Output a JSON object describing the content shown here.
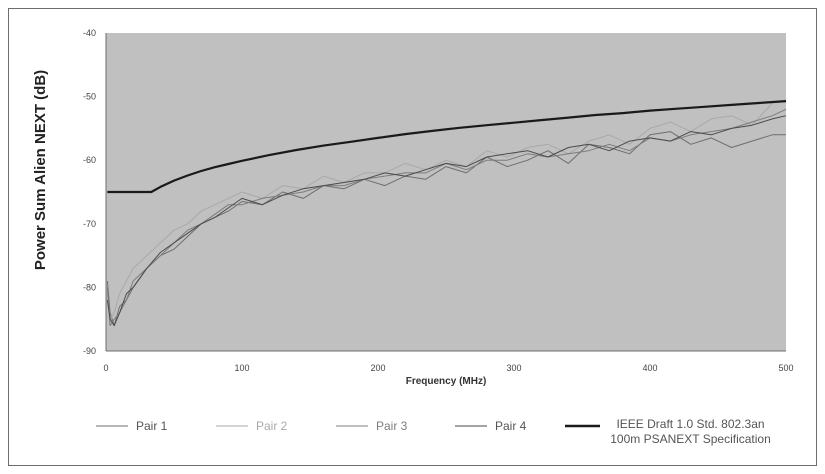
{
  "chart_data": {
    "type": "line",
    "xlabel": "Frequency (MHz)",
    "ylabel": "Power Sum Alien NEXT (dB)",
    "xlim": [
      0,
      500
    ],
    "ylim": [
      -90,
      -40
    ],
    "xticks": [
      0,
      100,
      200,
      300,
      400,
      500
    ],
    "yticks": [
      -40,
      -50,
      -60,
      -70,
      -80,
      -90
    ],
    "grid": false,
    "legend_position": "bottom",
    "plot_background": "#c0c0c0",
    "series": [
      {
        "name": "Pair 1",
        "color": "#6e6e6e",
        "x": [
          1,
          3,
          6,
          10,
          15,
          20,
          30,
          40,
          50,
          60,
          70,
          80,
          90,
          100,
          115,
          130,
          145,
          160,
          175,
          190,
          205,
          220,
          235,
          250,
          265,
          280,
          295,
          310,
          325,
          340,
          355,
          370,
          385,
          400,
          415,
          430,
          445,
          460,
          475,
          490,
          500
        ],
        "y": [
          -79,
          -84,
          -86,
          -83,
          -82,
          -80,
          -77,
          -75,
          -74,
          -72,
          -70,
          -69,
          -68,
          -66.5,
          -67,
          -65,
          -66,
          -64,
          -64.5,
          -63,
          -64,
          -62.5,
          -63,
          -61,
          -62,
          -59.5,
          -61,
          -60,
          -58.5,
          -60.5,
          -57.5,
          -58,
          -59,
          -56,
          -55.5,
          -57.5,
          -56.5,
          -58,
          -57,
          -56,
          -56
        ]
      },
      {
        "name": "Pair 2",
        "color": "#a9a9a9",
        "x": [
          1,
          3,
          6,
          10,
          15,
          20,
          30,
          40,
          50,
          60,
          70,
          80,
          90,
          100,
          115,
          130,
          145,
          160,
          175,
          190,
          205,
          220,
          235,
          250,
          265,
          280,
          295,
          310,
          325,
          340,
          355,
          370,
          385,
          400,
          415,
          430,
          445,
          460,
          475,
          490,
          500
        ],
        "y": [
          -81,
          -85,
          -84,
          -81,
          -79,
          -77,
          -75,
          -73,
          -71,
          -70,
          -68,
          -67,
          -66,
          -65,
          -66,
          -64,
          -64.5,
          -62.5,
          -63.5,
          -62,
          -62,
          -60.5,
          -61.5,
          -60,
          -61,
          -58.5,
          -59.5,
          -58,
          -57.5,
          -59,
          -57,
          -56,
          -57.5,
          -55,
          -54,
          -55.5,
          -53.5,
          -53,
          -54.5,
          -51,
          -50.5
        ]
      },
      {
        "name": "Pair 3",
        "color": "#7d7d7d",
        "x": [
          1,
          3,
          6,
          10,
          15,
          20,
          30,
          40,
          50,
          60,
          70,
          80,
          90,
          100,
          115,
          130,
          145,
          160,
          175,
          190,
          205,
          220,
          235,
          250,
          265,
          280,
          295,
          310,
          325,
          340,
          355,
          370,
          385,
          400,
          415,
          430,
          445,
          460,
          475,
          490,
          500
        ],
        "y": [
          -80,
          -86,
          -85,
          -84,
          -82,
          -79,
          -77,
          -75,
          -73,
          -71,
          -70,
          -68.5,
          -67,
          -67,
          -66,
          -65.5,
          -65,
          -64,
          -64,
          -63,
          -62.5,
          -62,
          -62,
          -60.5,
          -61.5,
          -60,
          -60,
          -59,
          -59.5,
          -59,
          -58.5,
          -57.5,
          -58.5,
          -56.5,
          -57,
          -56,
          -55.5,
          -55,
          -54,
          -53,
          -52
        ]
      },
      {
        "name": "Pair 4",
        "color": "#4a4a4a",
        "x": [
          1,
          3,
          6,
          10,
          15,
          20,
          30,
          40,
          50,
          60,
          70,
          80,
          90,
          100,
          115,
          130,
          145,
          160,
          175,
          190,
          205,
          220,
          235,
          250,
          265,
          280,
          295,
          310,
          325,
          340,
          355,
          370,
          385,
          400,
          415,
          430,
          445,
          460,
          475,
          490,
          500
        ],
        "y": [
          -82,
          -85,
          -86,
          -84,
          -81,
          -80,
          -77,
          -74.5,
          -73,
          -71.5,
          -70,
          -69,
          -67.5,
          -66,
          -67,
          -65.5,
          -64.5,
          -64,
          -63.5,
          -63,
          -62,
          -62.5,
          -61.5,
          -60.5,
          -61,
          -59.5,
          -59,
          -58.5,
          -59.5,
          -58,
          -57.5,
          -58.5,
          -57,
          -56.5,
          -57,
          -55.5,
          -56,
          -55,
          -54.5,
          -53.5,
          -53
        ]
      },
      {
        "name": "IEEE Draft 1.0 Std. 802.3an 100m PSANEXT Specification",
        "color": "#1a1a1a",
        "x": [
          1,
          10,
          20,
          33.3,
          33.3,
          40,
          50,
          60,
          70,
          80,
          90,
          100,
          120,
          140,
          160,
          180,
          200,
          220,
          240,
          260,
          280,
          300,
          320,
          340,
          360,
          380,
          400,
          420,
          440,
          460,
          480,
          500
        ],
        "y": [
          -65,
          -65,
          -65,
          -65,
          -65,
          -64.2,
          -63.2,
          -62.4,
          -61.7,
          -61.1,
          -60.6,
          -60.1,
          -59.2,
          -58.4,
          -57.7,
          -57.1,
          -56.5,
          -55.9,
          -55.4,
          -54.9,
          -54.5,
          -54.1,
          -53.7,
          -53.3,
          -52.9,
          -52.6,
          -52.2,
          -51.9,
          -51.6,
          -51.3,
          -51.0,
          -50.7
        ]
      }
    ]
  }
}
